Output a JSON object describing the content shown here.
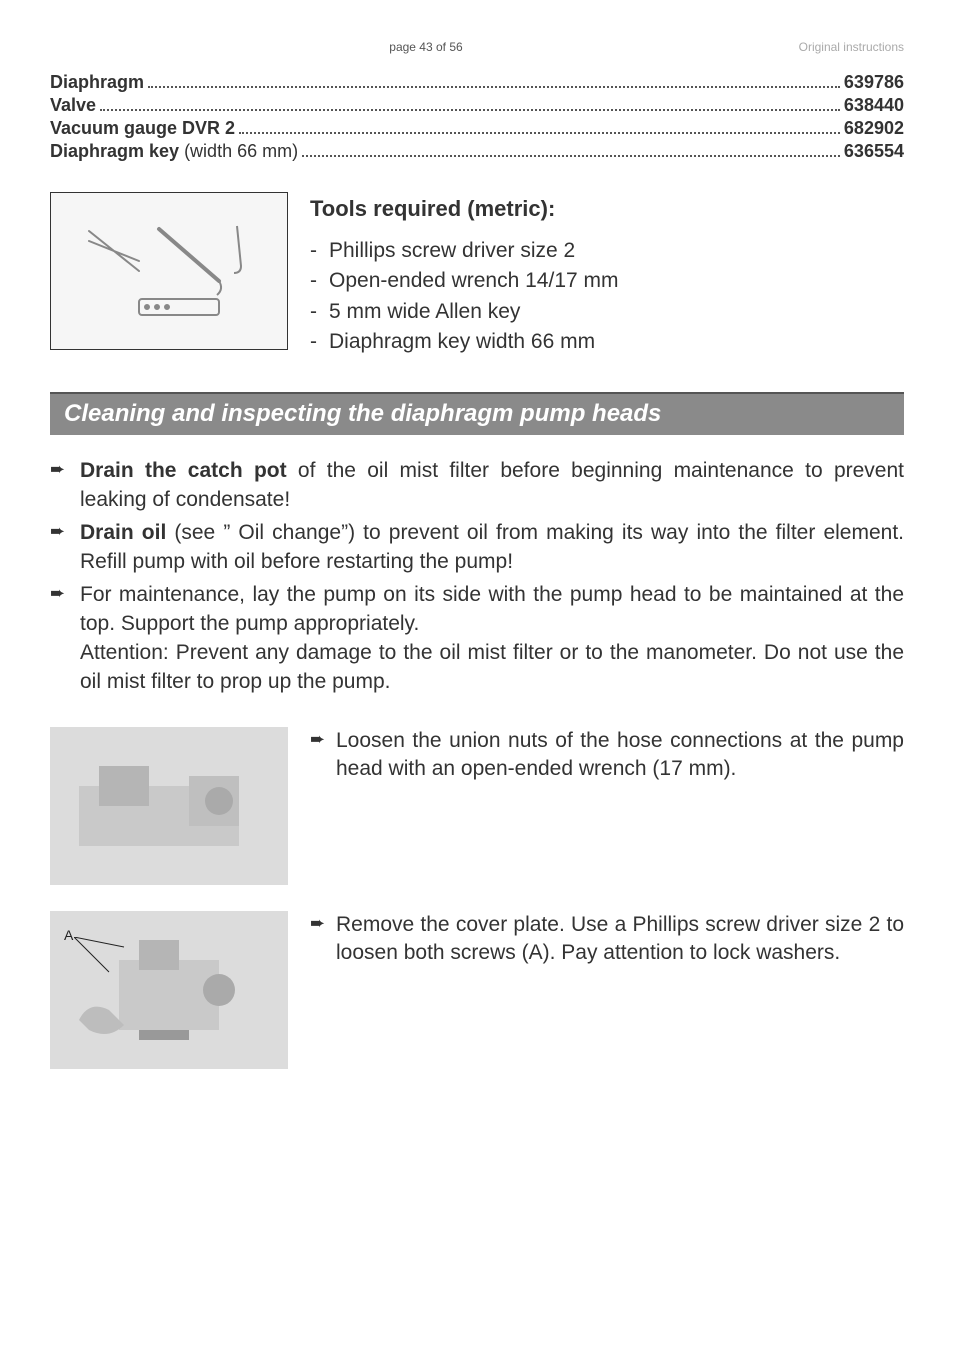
{
  "header": {
    "center": "page 43 of 56",
    "right": "Original instructions"
  },
  "parts": [
    {
      "label": "Diaphragm",
      "sub": "",
      "num": "639786"
    },
    {
      "label": "Valve",
      "sub": "",
      "num": "638440"
    },
    {
      "label": "Vacuum gauge DVR 2",
      "sub": "",
      "num": "682902"
    },
    {
      "label": "Diaphragm key",
      "sub": " (width 66 mm) ",
      "num": "636554"
    }
  ],
  "tools": {
    "heading": "Tools required (metric):",
    "items": [
      "Phillips screw driver size 2",
      "Open-ended wrench 14/17 mm",
      "5 mm wide Allen key",
      "Diaphragm key width 66 mm"
    ],
    "img_alt": "tools illustration"
  },
  "section_title": "Cleaning and inspecting the diaphragm pump heads",
  "main_points": [
    "<b>Drain the catch pot</b> of the oil mist filter before beginning maintenance to prevent leaking of condensate!",
    "<b>Drain oil</b> (see ” Oil change”) to prevent oil from making its way into the filter element. Refill pump with oil before restarting the pump!",
    "For maintenance, lay the pump on its side with the pump head to be maintained at the top. Support the pump appropriately.<br>Attention: Prevent any damage to the oil mist filter or to the manometer. Do not use the oil mist filter to prop up the pump."
  ],
  "steps": [
    {
      "img_alt": "pump hose connections",
      "label": "",
      "text": "Loosen the union nuts of the hose connections at the pump head with an open-ended wrench (17 mm)."
    },
    {
      "img_alt": "remove cover plate",
      "label": "A",
      "text": "Remove the cover plate. Use a Phillips screw driver size 2 to loosen both screws (A). Pay attention to lock washers."
    }
  ]
}
